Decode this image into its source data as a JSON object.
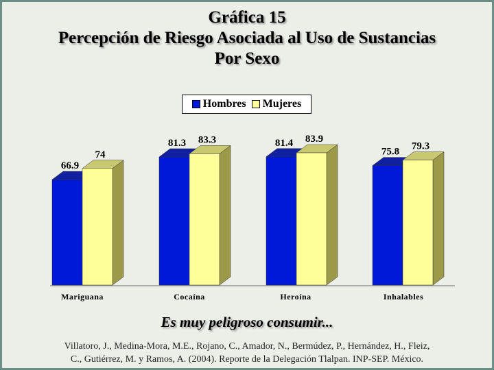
{
  "title_lines": [
    "Gráfica 15",
    "Percepción de Riesgo Asociada al Uso de Sustancias",
    "Por Sexo"
  ],
  "legend": {
    "items": [
      {
        "label": "Hombres",
        "color": "#0018d8"
      },
      {
        "label": "Mujeres",
        "color": "#ffff99"
      }
    ]
  },
  "subtitle": "Es muy peligroso consumir...",
  "source_lines": [
    "Villatoro, J., Medina-Mora, M.E., Rojano, C., Amador, N., Bermúdez, P., Hernández, H., Fleiz,",
    "C., Gutiérrez, M. y Ramos, A. (2004). Reporte de la Delegación Tlalpan. INP-SEP. México."
  ],
  "chart_data": {
    "type": "bar",
    "categories": [
      "Mariguana",
      "Cocaína",
      "Heroína",
      "Inhalables"
    ],
    "series": [
      {
        "name": "Hombres",
        "values": [
          66.9,
          81.3,
          81.4,
          75.8
        ],
        "labels": [
          "66.9",
          "81.3",
          "81.4",
          "75.8"
        ],
        "color": "#0018d8"
      },
      {
        "name": "Mujeres",
        "values": [
          74,
          83.3,
          83.9,
          79.3
        ],
        "labels": [
          "74",
          "83.3",
          "83.9",
          "79.3"
        ],
        "color": "#ffff99"
      }
    ],
    "ylim": [
      0,
      100
    ],
    "style": "3d-column",
    "grid": false,
    "legend_position": "top-center"
  }
}
